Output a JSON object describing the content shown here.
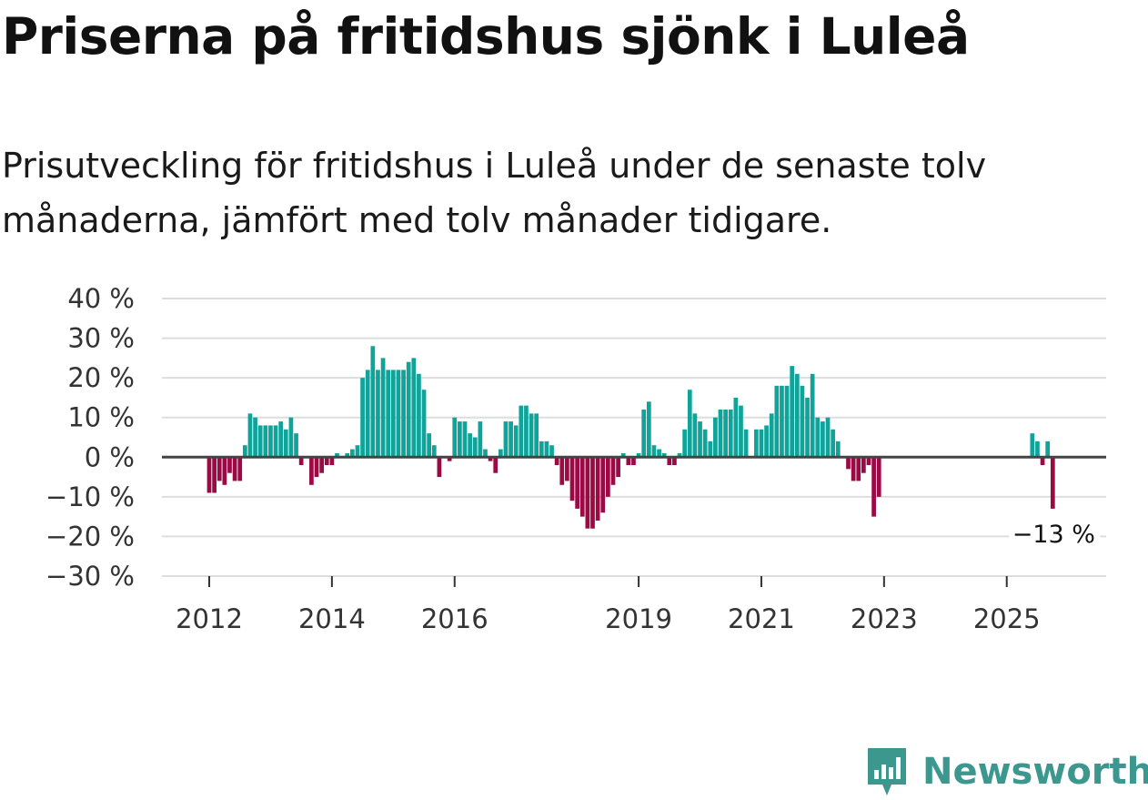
{
  "header": {
    "title": "Priserna på fritidshus sjönk i Luleå",
    "subtitle": "Prisutveckling för fritidshus i Luleå under de senaste tolv månaderna, jämfört med tolv månader tidigare."
  },
  "brand": {
    "name": "Newsworthy"
  },
  "colors": {
    "positive": "#0fa39a",
    "negative": "#9b0a45",
    "grid": "#dddddd",
    "zero": "#444444",
    "brand": "#3c978e"
  },
  "chart_data": {
    "type": "bar",
    "title": "Priserna på fritidshus sjönk i Luleå",
    "ylabel": "",
    "xlabel": "",
    "ylim": [
      -30,
      40
    ],
    "y_ticks": [
      40,
      30,
      20,
      10,
      0,
      -10,
      -20,
      -30
    ],
    "y_tick_labels": [
      "40 %",
      "30 %",
      "20 %",
      "10 %",
      "0 %",
      "−10 %",
      "−20 %",
      "−30 %"
    ],
    "x_start": "2011-01",
    "x_ticks": [
      {
        "label": "2012",
        "index": 12
      },
      {
        "label": "2014",
        "index": 36
      },
      {
        "label": "2016",
        "index": 60
      },
      {
        "label": "2019",
        "index": 96
      },
      {
        "label": "2021",
        "index": 120
      },
      {
        "label": "2023",
        "index": 144
      },
      {
        "label": "2025",
        "index": 168
      }
    ],
    "series": [
      {
        "name": "Prisutveckling (%)",
        "values": [
          null,
          null,
          null,
          null,
          null,
          null,
          null,
          null,
          null,
          null,
          null,
          null,
          -9,
          -9,
          -6,
          -7,
          -4,
          -6,
          -6,
          3,
          11,
          10,
          8,
          8,
          8,
          8,
          9,
          7,
          10,
          6,
          -2,
          0,
          -7,
          -5,
          -4,
          -2,
          -2,
          1,
          0,
          1,
          2,
          3,
          20,
          22,
          28,
          22,
          25,
          22,
          22,
          22,
          22,
          24,
          25,
          21,
          17,
          6,
          3,
          -5,
          0,
          -1,
          10,
          9,
          9,
          6,
          5,
          9,
          2,
          -1,
          -4,
          2,
          9,
          9,
          8,
          13,
          13,
          11,
          11,
          4,
          4,
          3,
          -2,
          -7,
          -6,
          -11,
          -13,
          -15,
          -18,
          -18,
          -16,
          -14,
          -10,
          -7,
          -5,
          1,
          -2,
          -2,
          1,
          12,
          14,
          3,
          2,
          1,
          -2,
          -2,
          1,
          7,
          17,
          11,
          9,
          7,
          4,
          10,
          12,
          12,
          12,
          15,
          13,
          7,
          0,
          7,
          7,
          8,
          11,
          18,
          18,
          18,
          23,
          21,
          18,
          15,
          21,
          10,
          9,
          10,
          7,
          4,
          0,
          -3,
          -6,
          -6,
          -4,
          -2,
          -15,
          -10,
          null,
          null,
          null,
          null,
          null,
          null,
          null,
          null,
          null,
          null,
          null,
          null,
          null,
          null,
          null,
          null,
          null,
          null,
          null,
          null,
          null,
          null,
          null,
          null,
          null,
          null,
          null,
          null,
          null,
          6,
          4,
          -2,
          4,
          -13
        ]
      }
    ],
    "annotations": [
      {
        "label": "−13 %",
        "value": -13,
        "index": 177
      }
    ]
  }
}
